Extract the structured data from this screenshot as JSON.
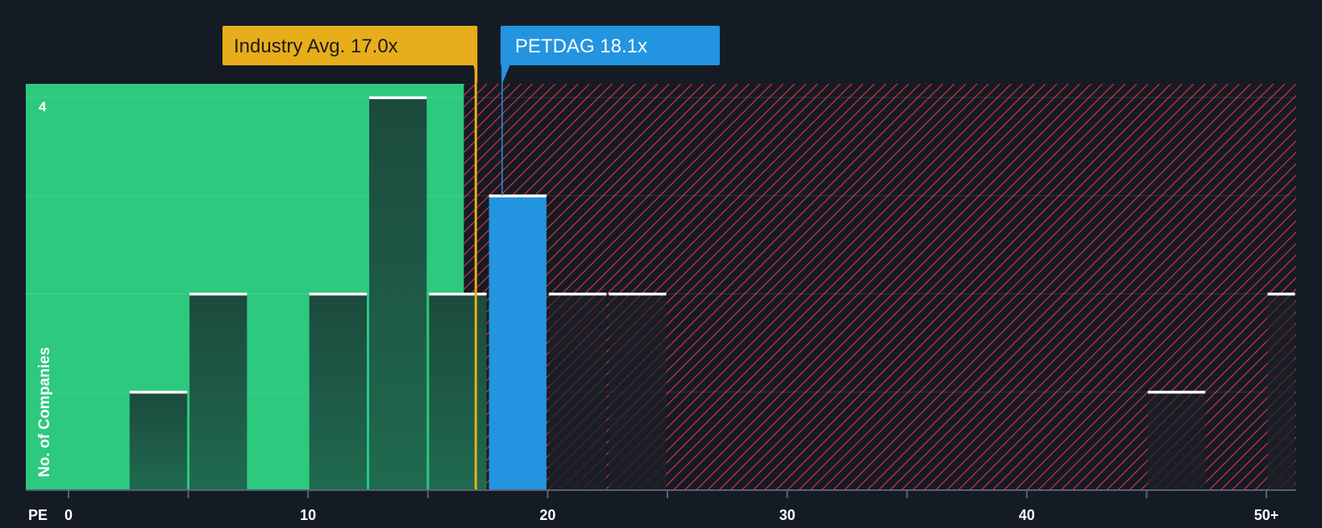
{
  "chart_data": {
    "type": "bar",
    "metric_label": "PE",
    "ylabel": "No. of Companies",
    "y_max_label": "4",
    "ylim": [
      0,
      4
    ],
    "xlim": [
      0,
      51.5
    ],
    "x_tick_labels": [
      {
        "value": 0,
        "label": "0"
      },
      {
        "value": 10,
        "label": "10"
      },
      {
        "value": 20,
        "label": "20"
      },
      {
        "value": 30,
        "label": "30"
      },
      {
        "value": 40,
        "label": "40"
      },
      {
        "value": 50,
        "label": "50+"
      }
    ],
    "bars": [
      {
        "x0": 2.5,
        "x1": 5.0,
        "value": 1
      },
      {
        "x0": 5.0,
        "x1": 7.5,
        "value": 2
      },
      {
        "x0": 10.0,
        "x1": 12.5,
        "value": 2
      },
      {
        "x0": 12.5,
        "x1": 15.0,
        "value": 4
      },
      {
        "x0": 15.0,
        "x1": 17.5,
        "value": 2
      },
      {
        "x0": 17.5,
        "x1": 20.0,
        "value": 3,
        "highlight": true
      },
      {
        "x0": 20.0,
        "x1": 22.5,
        "value": 2
      },
      {
        "x0": 22.5,
        "x1": 25.0,
        "value": 2
      },
      {
        "x0": 45.0,
        "x1": 47.5,
        "value": 1
      },
      {
        "x0": 50.0,
        "x1": 51.5,
        "value": 2
      }
    ],
    "fair_zone_end": 16.5,
    "industry_avg": {
      "value": 17.0,
      "label": "Industry Avg. 17.0x"
    },
    "company": {
      "value": 18.1,
      "label": "PETDAG 18.1x"
    },
    "colors": {
      "background": "#151b24",
      "fair_zone": "#2dc97e",
      "bar": "#1f4a3e",
      "highlight_bar": "#2394e0",
      "hatch": "#d8333f",
      "industry_avg": "#e8ad1a",
      "company": "#2394e0",
      "axis_text": "#ffffff"
    }
  }
}
